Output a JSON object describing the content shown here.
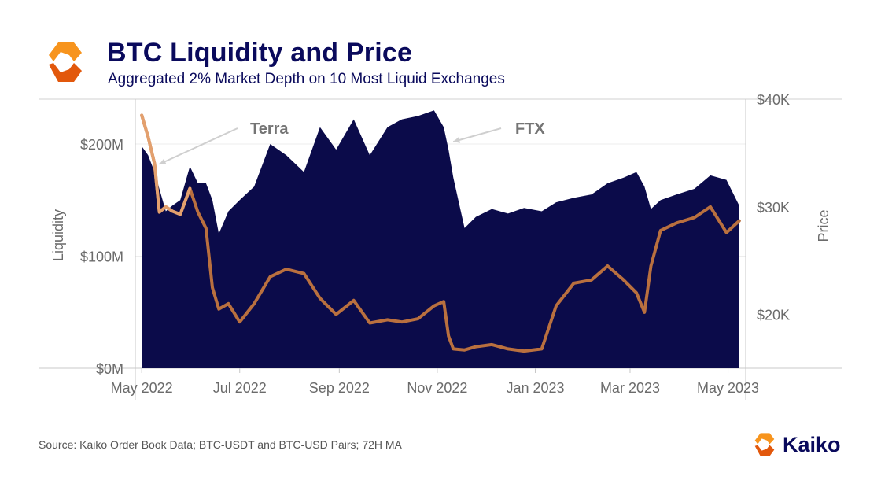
{
  "header": {
    "title": "BTC Liquidity and Price",
    "subtitle": "Aggregated 2% Market Depth on 10 Most Liquid Exchanges"
  },
  "footer": {
    "source": "Source: Kaiko Order Book Data; BTC-USDT and BTC-USD Pairs; 72H MA",
    "brand": "Kaiko"
  },
  "colors": {
    "title": "#0a0a5c",
    "liquidity_area": "#0b0b4a",
    "price_line": "#b9703f",
    "price_line_highlight": "#e3a06e",
    "annotation": "#757575",
    "arrow": "#cfcfcf",
    "logo_orange": "#f7941d",
    "logo_dark": "#e2580c"
  },
  "chart_data": {
    "type": "area",
    "title": "BTC Liquidity and Price",
    "subtitle": "Aggregated 2% Market Depth on 10 Most Liquid Exchanges",
    "x": [
      "2022-05-01",
      "2022-05-05",
      "2022-05-09",
      "2022-05-12",
      "2022-05-16",
      "2022-05-20",
      "2022-05-25",
      "2022-05-31",
      "2022-06-05",
      "2022-06-10",
      "2022-06-14",
      "2022-06-18",
      "2022-06-24",
      "2022-07-01",
      "2022-07-10",
      "2022-07-20",
      "2022-07-30",
      "2022-08-10",
      "2022-08-20",
      "2022-08-30",
      "2022-09-10",
      "2022-09-20",
      "2022-10-01",
      "2022-10-10",
      "2022-10-20",
      "2022-10-30",
      "2022-11-05",
      "2022-11-08",
      "2022-11-11",
      "2022-11-18",
      "2022-11-25",
      "2022-12-05",
      "2022-12-15",
      "2022-12-25",
      "2023-01-05",
      "2023-01-14",
      "2023-01-25",
      "2023-02-05",
      "2023-02-15",
      "2023-02-25",
      "2023-03-05",
      "2023-03-10",
      "2023-03-14",
      "2023-03-20",
      "2023-03-30",
      "2023-04-10",
      "2023-04-20",
      "2023-04-30",
      "2023-05-08"
    ],
    "series": [
      {
        "name": "Liquidity",
        "axis": "left",
        "style": "area",
        "values": [
          198,
          190,
          175,
          160,
          140,
          145,
          150,
          180,
          165,
          165,
          150,
          120,
          140,
          150,
          162,
          200,
          190,
          175,
          215,
          195,
          222,
          190,
          215,
          222,
          225,
          230,
          215,
          195,
          170,
          125,
          135,
          142,
          138,
          143,
          140,
          148,
          152,
          155,
          165,
          170,
          175,
          162,
          142,
          150,
          155,
          160,
          172,
          168,
          145
        ]
      },
      {
        "name": "Price",
        "axis": "right",
        "style": "line",
        "values": [
          38500,
          36500,
          34000,
          29500,
          30000,
          29600,
          29300,
          31700,
          29500,
          28000,
          22500,
          20500,
          21000,
          19300,
          21000,
          23500,
          24200,
          23800,
          21500,
          20000,
          21300,
          19200,
          19500,
          19300,
          19600,
          20800,
          21200,
          18000,
          16800,
          16700,
          17000,
          17200,
          16800,
          16600,
          16800,
          20800,
          22900,
          23200,
          24500,
          23200,
          22000,
          20200,
          24500,
          27800,
          28500,
          29000,
          30000,
          27600,
          28700
        ],
        "highlight_until": "2022-05-31"
      }
    ],
    "axes": {
      "left": {
        "label": "Liquidity",
        "min": 0,
        "max": 240,
        "ticks": [
          0,
          100,
          200
        ],
        "tick_labels": [
          "$0M",
          "$100M",
          "$200M"
        ]
      },
      "right": {
        "label": "Price",
        "min": 15000,
        "max": 40000,
        "ticks": [
          20000,
          30000,
          40000
        ],
        "tick_labels": [
          "$20K",
          "$30K",
          "$40K"
        ]
      },
      "x": {
        "ticks": [
          "2022-05-01",
          "2022-07-01",
          "2022-09-01",
          "2022-11-01",
          "2023-01-01",
          "2023-03-01",
          "2023-05-01"
        ],
        "tick_labels": [
          "May 2022",
          "Jul 2022",
          "Sep 2022",
          "Nov 2022",
          "Jan 2023",
          "Mar 2023",
          "May 2023"
        ]
      }
    },
    "annotations": [
      {
        "label": "Terra",
        "date": "2022-05-09"
      },
      {
        "label": "FTX",
        "date": "2022-11-08"
      }
    ],
    "grid": true,
    "legend": "none"
  }
}
